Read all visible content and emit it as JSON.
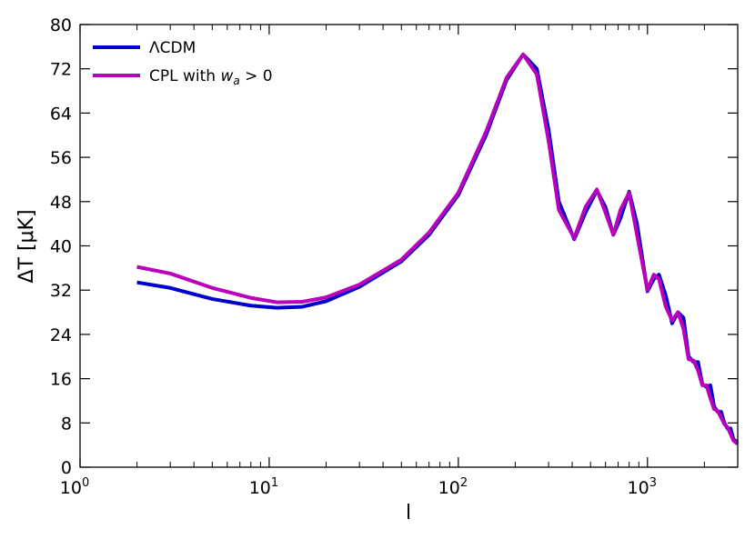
{
  "chart_data": {
    "type": "line",
    "xlabel": "l",
    "ylabel": "ΔT [μK]",
    "xscale": "log",
    "xlim": [
      1,
      3000
    ],
    "ylim": [
      0,
      80
    ],
    "grid": false,
    "legend_placement": "top-left",
    "x_ticks": [
      {
        "base": "10",
        "exp": "0",
        "value": 1
      },
      {
        "base": "10",
        "exp": "1",
        "value": 10
      },
      {
        "base": "10",
        "exp": "2",
        "value": 100
      },
      {
        "base": "10",
        "exp": "3",
        "value": 1000
      }
    ],
    "y_ticks": [
      "0",
      "8",
      "16",
      "24",
      "32",
      "40",
      "48",
      "56",
      "64",
      "72",
      "80"
    ],
    "legend": {
      "lcdm_label": "ΛCDM",
      "cpl_prefix": "CPL with ",
      "cpl_var": "w",
      "cpl_sub": "a",
      "cpl_suffix": " > 0"
    },
    "series": [
      {
        "name": "ΛCDM",
        "color": "#0000cc",
        "x": [
          2,
          3,
          5,
          8,
          11,
          15,
          20,
          30,
          50,
          70,
          100,
          140,
          180,
          220,
          260,
          300,
          340,
          410,
          470,
          540,
          600,
          660,
          720,
          800,
          880,
          1000,
          1080,
          1150,
          1250,
          1350,
          1450,
          1550,
          1650,
          1750,
          1850,
          1950,
          2050,
          2150,
          2250,
          2350,
          2450,
          2550,
          2650,
          2750,
          2850,
          3000
        ],
        "y": [
          33.4,
          32.4,
          30.4,
          29.2,
          28.8,
          29.0,
          30.0,
          32.6,
          37.2,
          42.0,
          49.2,
          60.0,
          70.0,
          74.6,
          72.0,
          61.0,
          48.0,
          41.2,
          46.0,
          50.0,
          47.0,
          42.0,
          45.0,
          49.8,
          44.0,
          31.8,
          34.0,
          34.8,
          31.0,
          26.0,
          28.0,
          27.0,
          20.0,
          19.0,
          19.0,
          15.0,
          14.5,
          14.8,
          11.0,
          10.0,
          10.0,
          8.0,
          7.0,
          7.0,
          5.0,
          4.5
        ]
      },
      {
        "name": "CPL with w_a > 0",
        "color": "#bb00bb",
        "x": [
          2,
          3,
          5,
          8,
          11,
          15,
          20,
          30,
          50,
          70,
          100,
          140,
          180,
          220,
          260,
          300,
          340,
          410,
          470,
          540,
          600,
          660,
          720,
          800,
          880,
          1000,
          1080,
          1150,
          1250,
          1350,
          1450,
          1550,
          1650,
          1750,
          1850,
          1950,
          2050,
          2150,
          2250,
          2350,
          2450,
          2550,
          2650,
          2750,
          2850,
          3000
        ],
        "y": [
          36.2,
          35.0,
          32.4,
          30.6,
          29.8,
          29.9,
          30.7,
          33.0,
          37.5,
          42.4,
          49.6,
          60.6,
          70.4,
          74.6,
          71.0,
          59.0,
          46.5,
          41.4,
          47.0,
          50.2,
          46.0,
          42.0,
          46.5,
          49.6,
          42.0,
          32.0,
          34.8,
          34.0,
          29.0,
          26.5,
          28.0,
          25.0,
          19.5,
          19.3,
          17.5,
          14.8,
          14.8,
          12.5,
          10.5,
          10.2,
          9.0,
          7.8,
          7.2,
          6.0,
          4.8,
          4.2
        ]
      }
    ]
  }
}
